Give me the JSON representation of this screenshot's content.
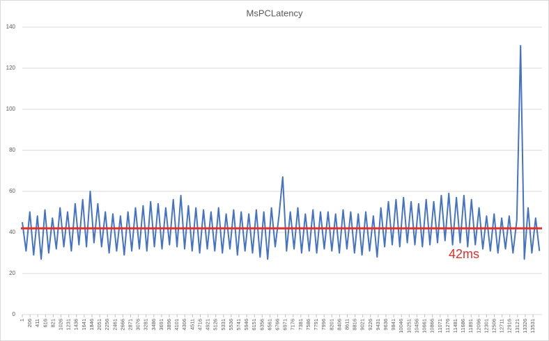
{
  "chart_data": {
    "type": "line",
    "title": "MsPCLatency",
    "x": [
      1,
      101,
      201,
      301,
      401,
      501,
      601,
      701,
      801,
      901,
      1001,
      1101,
      1201,
      1301,
      1401,
      1501,
      1601,
      1701,
      1801,
      1901,
      2001,
      2101,
      2201,
      2301,
      2401,
      2501,
      2601,
      2701,
      2801,
      2901,
      3001,
      3101,
      3201,
      3301,
      3401,
      3501,
      3601,
      3701,
      3801,
      3901,
      4001,
      4101,
      4201,
      4301,
      4401,
      4501,
      4601,
      4701,
      4801,
      4901,
      5001,
      5101,
      5201,
      5301,
      5401,
      5501,
      5601,
      5701,
      5801,
      5901,
      6001,
      6101,
      6201,
      6301,
      6401,
      6501,
      6601,
      6701,
      6801,
      6901,
      7001,
      7101,
      7201,
      7301,
      7401,
      7501,
      7601,
      7701,
      7801,
      7901,
      8001,
      8101,
      8201,
      8301,
      8401,
      8501,
      8601,
      8701,
      8801,
      8901,
      9001,
      9101,
      9201,
      9301,
      9401,
      9501,
      9601,
      9701,
      9801,
      9901,
      10001,
      10101,
      10201,
      10301,
      10401,
      10501,
      10601,
      10701,
      10801,
      10901,
      11001,
      11101,
      11201,
      11301,
      11401,
      11501,
      11601,
      11701,
      11801,
      11901,
      12001,
      12101,
      12201,
      12301,
      12401,
      12501,
      12601,
      12701,
      12801,
      12901,
      13001,
      13101,
      13201,
      13301,
      13401,
      13501,
      13601,
      13701
    ],
    "series": [
      {
        "name": "MsPCLatency",
        "color": "#4472c4",
        "values": [
          45,
          31,
          50,
          29,
          48,
          27,
          51,
          30,
          47,
          32,
          52,
          33,
          50,
          31,
          54,
          34,
          56,
          33,
          60,
          35,
          54,
          33,
          50,
          30,
          49,
          31,
          48,
          29,
          50,
          31,
          52,
          32,
          53,
          31,
          55,
          33,
          54,
          32,
          52,
          34,
          56,
          33,
          58,
          32,
          53,
          31,
          52,
          30,
          51,
          32,
          50,
          31,
          52,
          30,
          49,
          32,
          51,
          29,
          50,
          31,
          49,
          30,
          51,
          28,
          50,
          27,
          52,
          33,
          48,
          67,
          31,
          50,
          32,
          52,
          30,
          49,
          31,
          51,
          30,
          50,
          32,
          50,
          31,
          49,
          30,
          51,
          32,
          50,
          30,
          49,
          29,
          50,
          31,
          48,
          28,
          52,
          33,
          55,
          34,
          56,
          33,
          57,
          35,
          55,
          34,
          54,
          33,
          56,
          34,
          55,
          35,
          58,
          36,
          59,
          34,
          57,
          35,
          58,
          33,
          56,
          34,
          52,
          32,
          48,
          31,
          49,
          30,
          47,
          32,
          48,
          30,
          46,
          131,
          27,
          52,
          30,
          47,
          31
        ]
      }
    ],
    "xlim": [
      1,
      13770
    ],
    "xticks": [
      1,
      206,
      411,
      616,
      821,
      1026,
      1231,
      1436,
      1641,
      1846,
      2051,
      2256,
      2461,
      2666,
      2871,
      3076,
      3281,
      3486,
      3691,
      3896,
      4101,
      4306,
      4511,
      4716,
      4921,
      5126,
      5331,
      5536,
      5741,
      5946,
      6151,
      6356,
      6561,
      6766,
      6971,
      7176,
      7381,
      7586,
      7791,
      7996,
      8201,
      8406,
      8611,
      8816,
      9021,
      9226,
      9431,
      9636,
      9841,
      10046,
      10251,
      10456,
      10661,
      10866,
      11071,
      11276,
      11481,
      11686,
      11891,
      12096,
      12301,
      12506,
      12711,
      12916,
      13121,
      13326,
      13531
    ],
    "ylim": [
      0,
      140
    ],
    "yticks": [
      0,
      20,
      40,
      60,
      80,
      100,
      120,
      140
    ],
    "grid": true,
    "reference": {
      "value": 42,
      "label": "42ms",
      "color": "#e0302a"
    }
  }
}
